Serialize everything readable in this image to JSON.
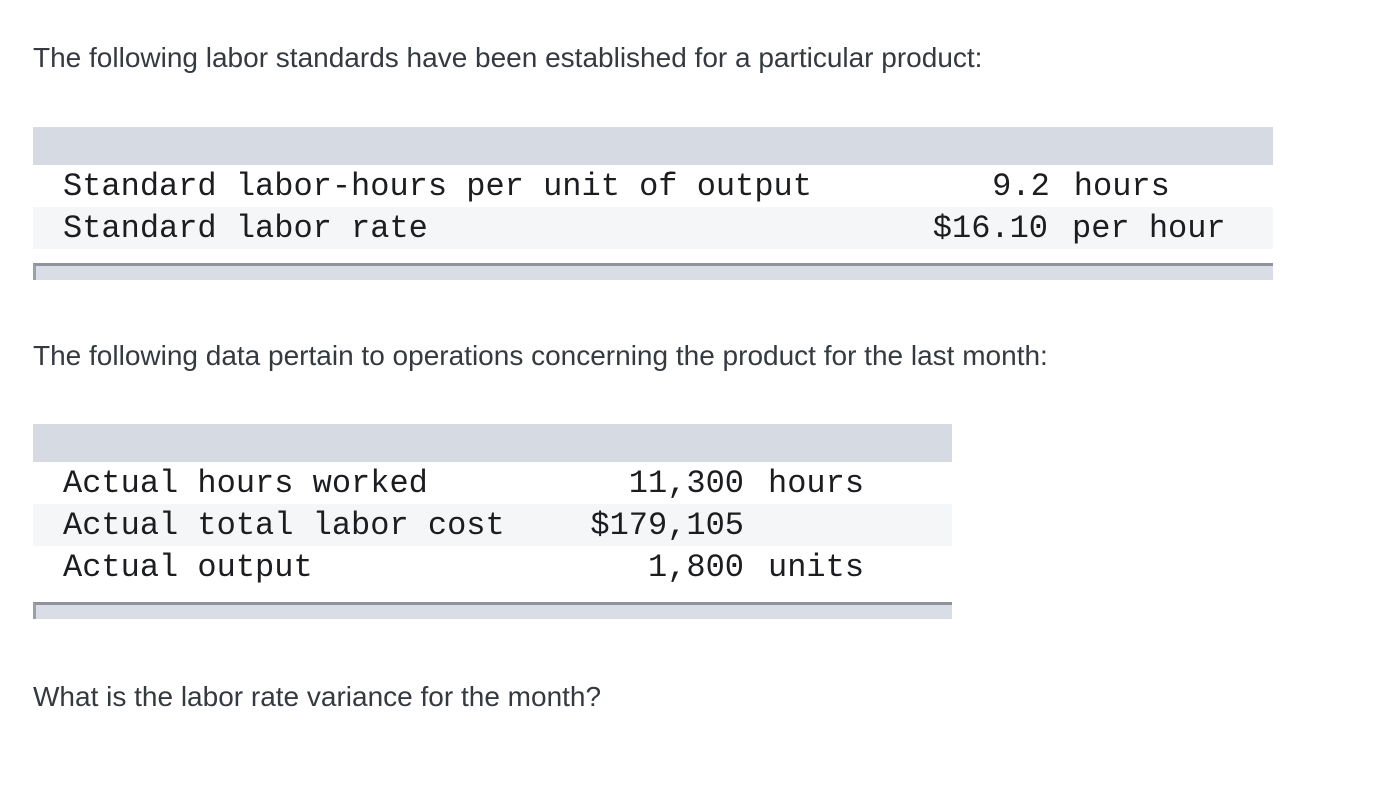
{
  "page": {
    "intro1": "The following labor standards have been established for a particular product:",
    "intro2": "The following data pertain to operations concerning the product for the last month:",
    "question": "What is the labor rate variance for the month?"
  },
  "standards_table": {
    "rows": [
      {
        "label": "Standard labor-hours per unit of output",
        "value": "9.2",
        "unit": "hours"
      },
      {
        "label": "Standard labor rate",
        "value": "$16.10",
        "unit": "per hour"
      }
    ]
  },
  "actuals_table": {
    "rows": [
      {
        "label": "Actual hours worked",
        "value": "11,300",
        "unit": "hours"
      },
      {
        "label": "Actual total labor cost",
        "value": "$179,105",
        "unit": ""
      },
      {
        "label": "Actual output",
        "value": "1,800",
        "unit": "units"
      }
    ]
  },
  "colors": {
    "header_band": "#d6dae2",
    "row_stripe": "#f5f6f7",
    "scrollbar_track": "#d9dde5",
    "scrollbar_border": "#8f939b",
    "body_text": "#343a40",
    "mono_text": "#1b1d20"
  }
}
